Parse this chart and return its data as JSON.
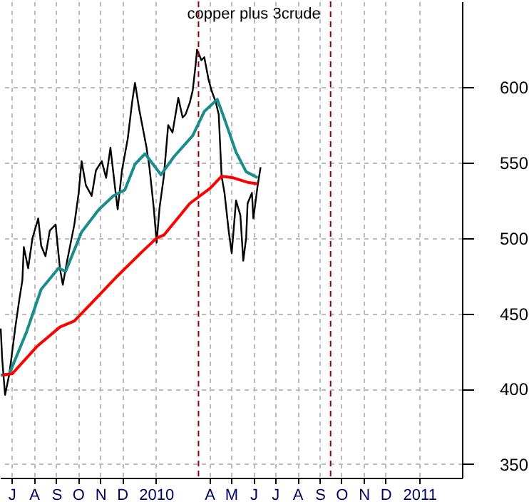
{
  "chart_data": {
    "type": "line",
    "title": "copper plus 3crude",
    "xlim": [
      "2009-06-30",
      "2011-04-01"
    ],
    "xticks": [
      {
        "value": "2009-07-16",
        "label": "J"
      },
      {
        "value": "2009-08-16",
        "label": "A"
      },
      {
        "value": "2009-09-16",
        "label": "S"
      },
      {
        "value": "2009-10-16",
        "label": "O"
      },
      {
        "value": "2009-11-16",
        "label": "N"
      },
      {
        "value": "2009-12-16",
        "label": "D"
      },
      {
        "value": "2010-02-01",
        "label": "2010"
      },
      {
        "value": "2010-04-16",
        "label": "A"
      },
      {
        "value": "2010-05-16",
        "label": "M"
      },
      {
        "value": "2010-06-16",
        "label": "J"
      },
      {
        "value": "2010-07-16",
        "label": "J"
      },
      {
        "value": "2010-08-16",
        "label": "A"
      },
      {
        "value": "2010-09-16",
        "label": "S"
      },
      {
        "value": "2010-10-16",
        "label": "O"
      },
      {
        "value": "2010-11-16",
        "label": "N"
      },
      {
        "value": "2010-12-16",
        "label": "D"
      },
      {
        "value": "2011-02-01",
        "label": "2011"
      }
    ],
    "ylim": [
      341,
      657
    ],
    "yticks": [
      350,
      400,
      450,
      500,
      550,
      600
    ],
    "grid": true,
    "line_style": "solid",
    "marker": "none",
    "ref_lines": [
      {
        "axis": "x",
        "value": "2010-04-01",
        "color": "#990000",
        "line_style": "dashed"
      },
      {
        "axis": "x",
        "value": "2010-10-01",
        "color": "#990000",
        "line_style": "dashed"
      }
    ],
    "series": [
      {
        "color": "#000000",
        "x": [
          "2009-07-01",
          "2009-07-03",
          "2009-07-07",
          "2009-07-13",
          "2009-07-21",
          "2009-07-27",
          "2009-07-31",
          "2009-08-02",
          "2009-08-08",
          "2009-08-14",
          "2009-08-22",
          "2009-08-26",
          "2009-09-01",
          "2009-09-07",
          "2009-09-15",
          "2009-09-21",
          "2009-09-25",
          "2009-10-01",
          "2009-10-11",
          "2009-10-17",
          "2009-10-21",
          "2009-10-27",
          "2009-11-04",
          "2009-11-10",
          "2009-11-18",
          "2009-11-24",
          "2009-11-30",
          "2009-12-06",
          "2009-12-10",
          "2009-12-16",
          "2009-12-24",
          "2009-12-30",
          "2010-01-03",
          "2010-01-09",
          "2010-01-13",
          "2010-01-19",
          "2010-01-23",
          "2010-01-29",
          "2010-02-02",
          "2010-02-06",
          "2010-02-12",
          "2010-02-18",
          "2010-02-24",
          "2010-03-04",
          "2010-03-10",
          "2010-03-14",
          "2010-03-20",
          "2010-03-24",
          "2010-03-28",
          "2010-03-30",
          "2010-04-05",
          "2010-04-09",
          "2010-04-15",
          "2010-04-19",
          "2010-04-25",
          "2010-04-29",
          "2010-05-03",
          "2010-05-07",
          "2010-05-13",
          "2010-05-17",
          "2010-05-23",
          "2010-05-29",
          "2010-06-02",
          "2010-06-06",
          "2010-06-08",
          "2010-06-14",
          "2010-06-16",
          "2010-06-22",
          "2010-06-26"
        ],
        "values": [
          440,
          420,
          396,
          410,
          440,
          460,
          472,
          494,
          480,
          500,
          513,
          495,
          488,
          505,
          509,
          480,
          469,
          485,
          509,
          530,
          551,
          535,
          528,
          545,
          551,
          540,
          560,
          535,
          519,
          545,
          566,
          590,
          603,
          585,
          575,
          560,
          547,
          520,
          497,
          520,
          541,
          575,
          570,
          593,
          580,
          582,
          590,
          598,
          615,
          625,
          618,
          620,
          605,
          598,
          590,
          582,
          541,
          530,
          504,
          490,
          525,
          515,
          485,
          500,
          523,
          530,
          513,
          535,
          547
        ]
      },
      {
        "color": "#1a8c8c",
        "x": [
          "2009-07-01",
          "2009-07-13",
          "2009-08-06",
          "2009-08-26",
          "2009-09-19",
          "2009-09-29",
          "2009-10-21",
          "2009-11-14",
          "2009-12-04",
          "2009-12-20",
          "2010-01-03",
          "2010-01-17",
          "2010-02-08",
          "2010-02-26",
          "2010-03-24",
          "2010-04-09",
          "2010-04-27",
          "2010-05-07",
          "2010-05-23",
          "2010-06-06",
          "2010-06-22"
        ],
        "values": [
          409,
          410,
          438,
          466,
          480,
          478,
          504,
          519,
          528,
          532,
          549,
          556,
          542,
          554,
          568,
          584,
          592,
          579,
          557,
          544,
          540
        ]
      },
      {
        "color": "#ff0000",
        "x": [
          "2009-07-03",
          "2009-07-17",
          "2009-08-20",
          "2009-09-21",
          "2009-10-11",
          "2009-11-08",
          "2009-12-10",
          "2010-01-13",
          "2010-02-02",
          "2010-02-12",
          "2010-03-20",
          "2010-04-17",
          "2010-05-03",
          "2010-05-19",
          "2010-06-08",
          "2010-06-22"
        ],
        "values": [
          409,
          410,
          428,
          441,
          445,
          459,
          475,
          491,
          500,
          502,
          523,
          533,
          541,
          540,
          537,
          536
        ]
      }
    ]
  }
}
